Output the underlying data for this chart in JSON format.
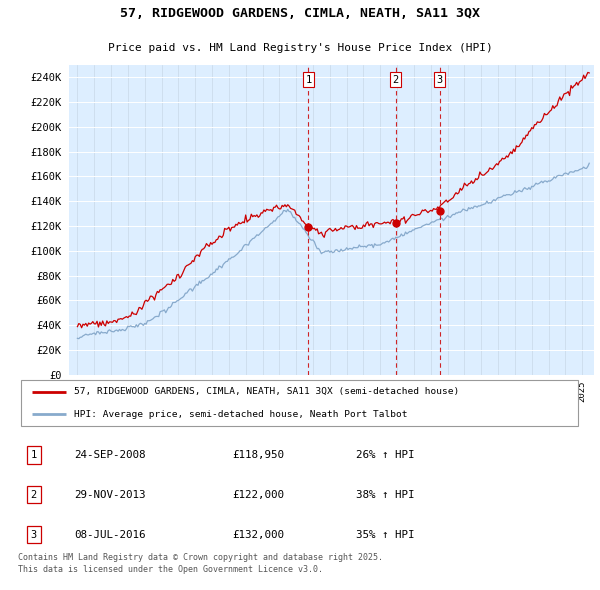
{
  "title": "57, RIDGEWOOD GARDENS, CIMLA, NEATH, SA11 3QX",
  "subtitle": "Price paid vs. HM Land Registry's House Price Index (HPI)",
  "legend_line1": "57, RIDGEWOOD GARDENS, CIMLA, NEATH, SA11 3QX (semi-detached house)",
  "legend_line2": "HPI: Average price, semi-detached house, Neath Port Talbot",
  "transactions": [
    {
      "num": 1,
      "date": "24-SEP-2008",
      "price": "£118,950",
      "change": "26% ↑ HPI",
      "x_year": 2008.73,
      "price_val": 118950
    },
    {
      "num": 2,
      "date": "29-NOV-2013",
      "price": "£122,000",
      "change": "38% ↑ HPI",
      "x_year": 2013.91,
      "price_val": 122000
    },
    {
      "num": 3,
      "date": "08-JUL-2016",
      "price": "£132,000",
      "change": "35% ↑ HPI",
      "x_year": 2016.52,
      "price_val": 132000
    }
  ],
  "footer": "Contains HM Land Registry data © Crown copyright and database right 2025.\nThis data is licensed under the Open Government Licence v3.0.",
  "plot_bg_color": "#ddeeff",
  "red_color": "#cc0000",
  "blue_color": "#88aacc",
  "ylim": [
    0,
    250000
  ],
  "yticks": [
    0,
    20000,
    40000,
    60000,
    80000,
    100000,
    120000,
    140000,
    160000,
    180000,
    200000,
    220000,
    240000
  ],
  "xlim_start": 1994.5,
  "xlim_end": 2025.7
}
